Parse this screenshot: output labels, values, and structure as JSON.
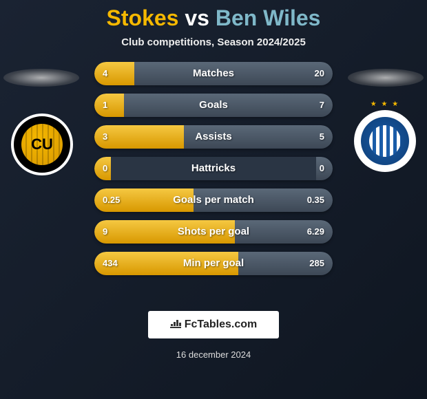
{
  "title": {
    "player1": "Stokes",
    "vs": "vs",
    "player2": "Ben Wiles"
  },
  "subtitle": "Club competitions, Season 2024/2025",
  "crests": {
    "left_text": "CU",
    "right_stars": "★ ★ ★"
  },
  "stats": [
    {
      "label": "Matches",
      "left_val": "4",
      "right_val": "20",
      "left_pct": 16.7,
      "right_pct": 83.3
    },
    {
      "label": "Goals",
      "left_val": "1",
      "right_val": "7",
      "left_pct": 12.5,
      "right_pct": 87.5
    },
    {
      "label": "Assists",
      "left_val": "3",
      "right_val": "5",
      "left_pct": 37.5,
      "right_pct": 62.5
    },
    {
      "label": "Hattricks",
      "left_val": "0",
      "right_val": "0",
      "left_pct": 7,
      "right_pct": 7
    },
    {
      "label": "Goals per match",
      "left_val": "0.25",
      "right_val": "0.35",
      "left_pct": 41.7,
      "right_pct": 58.3
    },
    {
      "label": "Shots per goal",
      "left_val": "9",
      "right_val": "6.29",
      "left_pct": 58.9,
      "right_pct": 41.1
    },
    {
      "label": "Min per goal",
      "left_val": "434",
      "right_val": "285",
      "left_pct": 60.4,
      "right_pct": 39.6
    }
  ],
  "colors": {
    "player1_accent": "#f5b800",
    "player2_accent": "#7fb8c9",
    "bar_left": "#f5c842",
    "bar_right": "#5a6878",
    "background": "#1a2332"
  },
  "footer": {
    "logo_text": "FcTables.com",
    "date": "16 december 2024"
  }
}
